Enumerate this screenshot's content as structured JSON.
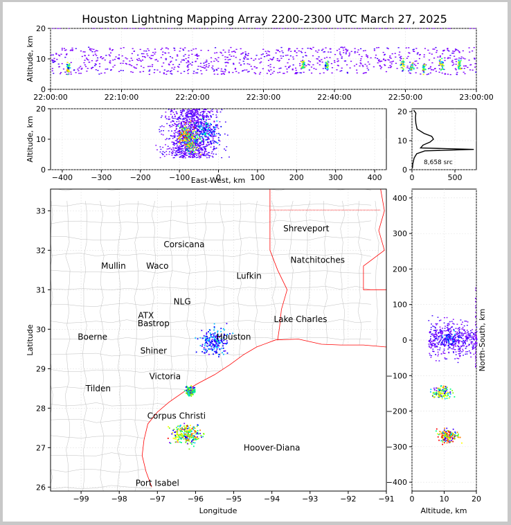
{
  "title": "Houston Lightning Mapping Array 2200-2300 UTC March 27, 2025",
  "colors": {
    "map_county_lines": "#bdbdbd",
    "map_state_lines": "#ff0000",
    "coast": "#ff0000",
    "source_scale": [
      "#7f00ff",
      "#3f00ff",
      "#0000ff",
      "#00bfff",
      "#00ff7f",
      "#7fff00",
      "#ffff00",
      "#ff7f00",
      "#ff0000"
    ]
  },
  "chart_data": [
    {
      "type": "scatter",
      "panel": "altitude-time",
      "ylabel": "Altitude, km",
      "xlabel": "",
      "ylim": [
        0,
        20
      ],
      "yticks": [
        "0",
        "10",
        "20"
      ],
      "xticks": [
        "22:00:00",
        "22:10:00",
        "22:20:00",
        "22:30:00",
        "22:40:00",
        "22:50:00",
        "23:00:00"
      ],
      "x_range_minutes": [
        0,
        60
      ],
      "active_window_minutes": [
        0,
        60
      ],
      "altitude_band_km": [
        5,
        14
      ],
      "cores": [
        {
          "t_min": 2.4,
          "alt_km": 7.0
        },
        {
          "t_min": 35.5,
          "alt_km": 8.0
        },
        {
          "t_min": 38.8,
          "alt_km": 8.0
        },
        {
          "t_min": 49.5,
          "alt_km": 8.5
        },
        {
          "t_min": 50.8,
          "alt_km": 7.5
        },
        {
          "t_min": 52.5,
          "alt_km": 7.0
        },
        {
          "t_min": 55.0,
          "alt_km": 8.5
        },
        {
          "t_min": 57.5,
          "alt_km": 8.0
        }
      ]
    },
    {
      "type": "scatter",
      "panel": "altitude-east-west",
      "xlabel": "East-West, km",
      "ylabel": "Altitude, km",
      "xlim": [
        -430,
        430
      ],
      "ylim": [
        0,
        20
      ],
      "xticks": [
        "−400",
        "−300",
        "−200",
        "−100",
        "0",
        "100",
        "200",
        "300",
        "400"
      ],
      "yticks": [
        "0",
        "10",
        "20"
      ],
      "cores": [
        {
          "x_km": -85,
          "alt_km": 11,
          "intensity": 1.0
        },
        {
          "x_km": -70,
          "alt_km": 9,
          "intensity": 0.8
        },
        {
          "x_km": -40,
          "alt_km": 13,
          "intensity": 0.5
        },
        {
          "x_km": -15,
          "alt_km": 12,
          "intensity": 0.4
        }
      ]
    },
    {
      "type": "line",
      "panel": "altitude-histogram",
      "xlim": [
        0,
        750
      ],
      "ylim": [
        0,
        21
      ],
      "xticks": [
        "0",
        "500"
      ],
      "yticks": [
        "0",
        "10",
        "20"
      ],
      "annotation": "8,658 src",
      "profile": [
        {
          "alt_km": 0.5,
          "count": 5
        },
        {
          "alt_km": 2,
          "count": 10
        },
        {
          "alt_km": 4,
          "count": 25
        },
        {
          "alt_km": 5.5,
          "count": 55
        },
        {
          "alt_km": 6.5,
          "count": 150
        },
        {
          "alt_km": 7.0,
          "count": 720
        },
        {
          "alt_km": 7.5,
          "count": 100
        },
        {
          "alt_km": 8.5,
          "count": 130
        },
        {
          "alt_km": 9.5,
          "count": 210
        },
        {
          "alt_km": 10.5,
          "count": 250
        },
        {
          "alt_km": 11.5,
          "count": 230
        },
        {
          "alt_km": 12.5,
          "count": 140
        },
        {
          "alt_km": 14,
          "count": 60
        },
        {
          "alt_km": 16,
          "count": 45
        },
        {
          "alt_km": 18,
          "count": 40
        },
        {
          "alt_km": 19.5,
          "count": 45
        },
        {
          "alt_km": 20.5,
          "count": 20
        }
      ]
    },
    {
      "type": "scatter",
      "panel": "plan-view-map",
      "xlabel": "Longitude",
      "ylabel": "Latitude",
      "xlim": [
        -99.8,
        -91.0
      ],
      "ylim": [
        25.9,
        33.55
      ],
      "xticks": [
        "−99",
        "−98",
        "−97",
        "−96",
        "−95",
        "−94",
        "−93",
        "−92",
        "−91"
      ],
      "yticks": [
        "26",
        "27",
        "28",
        "29",
        "30",
        "31",
        "32",
        "33"
      ],
      "cities": [
        {
          "name": "Shreveport",
          "lon": -93.1,
          "lat": 32.55,
          "color": "#000000"
        },
        {
          "name": "Corsicana",
          "lon": -96.3,
          "lat": 32.15,
          "color": "#000000"
        },
        {
          "name": "Natchitoches",
          "lon": -92.8,
          "lat": 31.75,
          "color": "#000000"
        },
        {
          "name": "Mullin",
          "lon": -98.15,
          "lat": 31.6,
          "color": "#ff7f3f"
        },
        {
          "name": "Waco",
          "lon": -97.0,
          "lat": 31.6,
          "color": "#000000"
        },
        {
          "name": "Lufkin",
          "lon": -94.6,
          "lat": 31.35,
          "color": "#000000"
        },
        {
          "name": "NLG",
          "lon": -96.35,
          "lat": 30.7,
          "color": "#000000"
        },
        {
          "name": "ATX",
          "lon": -97.3,
          "lat": 30.35,
          "color": "#ff7f3f"
        },
        {
          "name": "Bastrop",
          "lon": -97.1,
          "lat": 30.15,
          "color": "#000000"
        },
        {
          "name": "Lake Charles",
          "lon": -93.25,
          "lat": 30.25,
          "color": "#000000"
        },
        {
          "name": "Boerne",
          "lon": -98.7,
          "lat": 29.8,
          "color": "#000000"
        },
        {
          "name": "Houston",
          "lon": -95.0,
          "lat": 29.8,
          "color": "#ffa500"
        },
        {
          "name": "Shiner",
          "lon": -97.1,
          "lat": 29.45,
          "color": "#000000"
        },
        {
          "name": "Victoria",
          "lon": -96.8,
          "lat": 28.8,
          "color": "#000000"
        },
        {
          "name": "Tilden",
          "lon": -98.55,
          "lat": 28.5,
          "color": "#000000"
        },
        {
          "name": "Corpus Christi",
          "lon": -96.5,
          "lat": 27.8,
          "color": "#000000"
        },
        {
          "name": "Hoover-Diana",
          "lon": -94.0,
          "lat": 27.0,
          "color": "#0000ff"
        },
        {
          "name": "Port Isabel",
          "lon": -97.0,
          "lat": 26.1,
          "color": "#000000"
        }
      ],
      "cores": [
        {
          "lon": -95.55,
          "lat": 29.7,
          "intensity": 0.5,
          "spread_lon": 0.18,
          "spread_lat": 0.16
        },
        {
          "lon": -96.15,
          "lat": 28.45,
          "intensity": 0.8,
          "spread_lon": 0.05,
          "spread_lat": 0.05
        },
        {
          "lon": -96.25,
          "lat": 27.35,
          "intensity": 1.0,
          "spread_lon": 0.18,
          "spread_lat": 0.12
        }
      ]
    },
    {
      "type": "scatter",
      "panel": "north-south-altitude",
      "xlabel": "Altitude, km",
      "ylabel": "North-South, km",
      "xlim": [
        0,
        20
      ],
      "ylim": [
        -425,
        425
      ],
      "xticks": [
        "0",
        "10",
        "20"
      ],
      "yticks": [
        "−400",
        "−300",
        "−200",
        "−100",
        "0",
        "100",
        "200",
        "300",
        "400"
      ],
      "cores": [
        {
          "alt_km": 12,
          "y_km": 5,
          "intensity": 0.4
        },
        {
          "alt_km": 9,
          "y_km": -145,
          "intensity": 0.8
        },
        {
          "alt_km": 11,
          "y_km": -268,
          "intensity": 1.0
        }
      ]
    }
  ]
}
